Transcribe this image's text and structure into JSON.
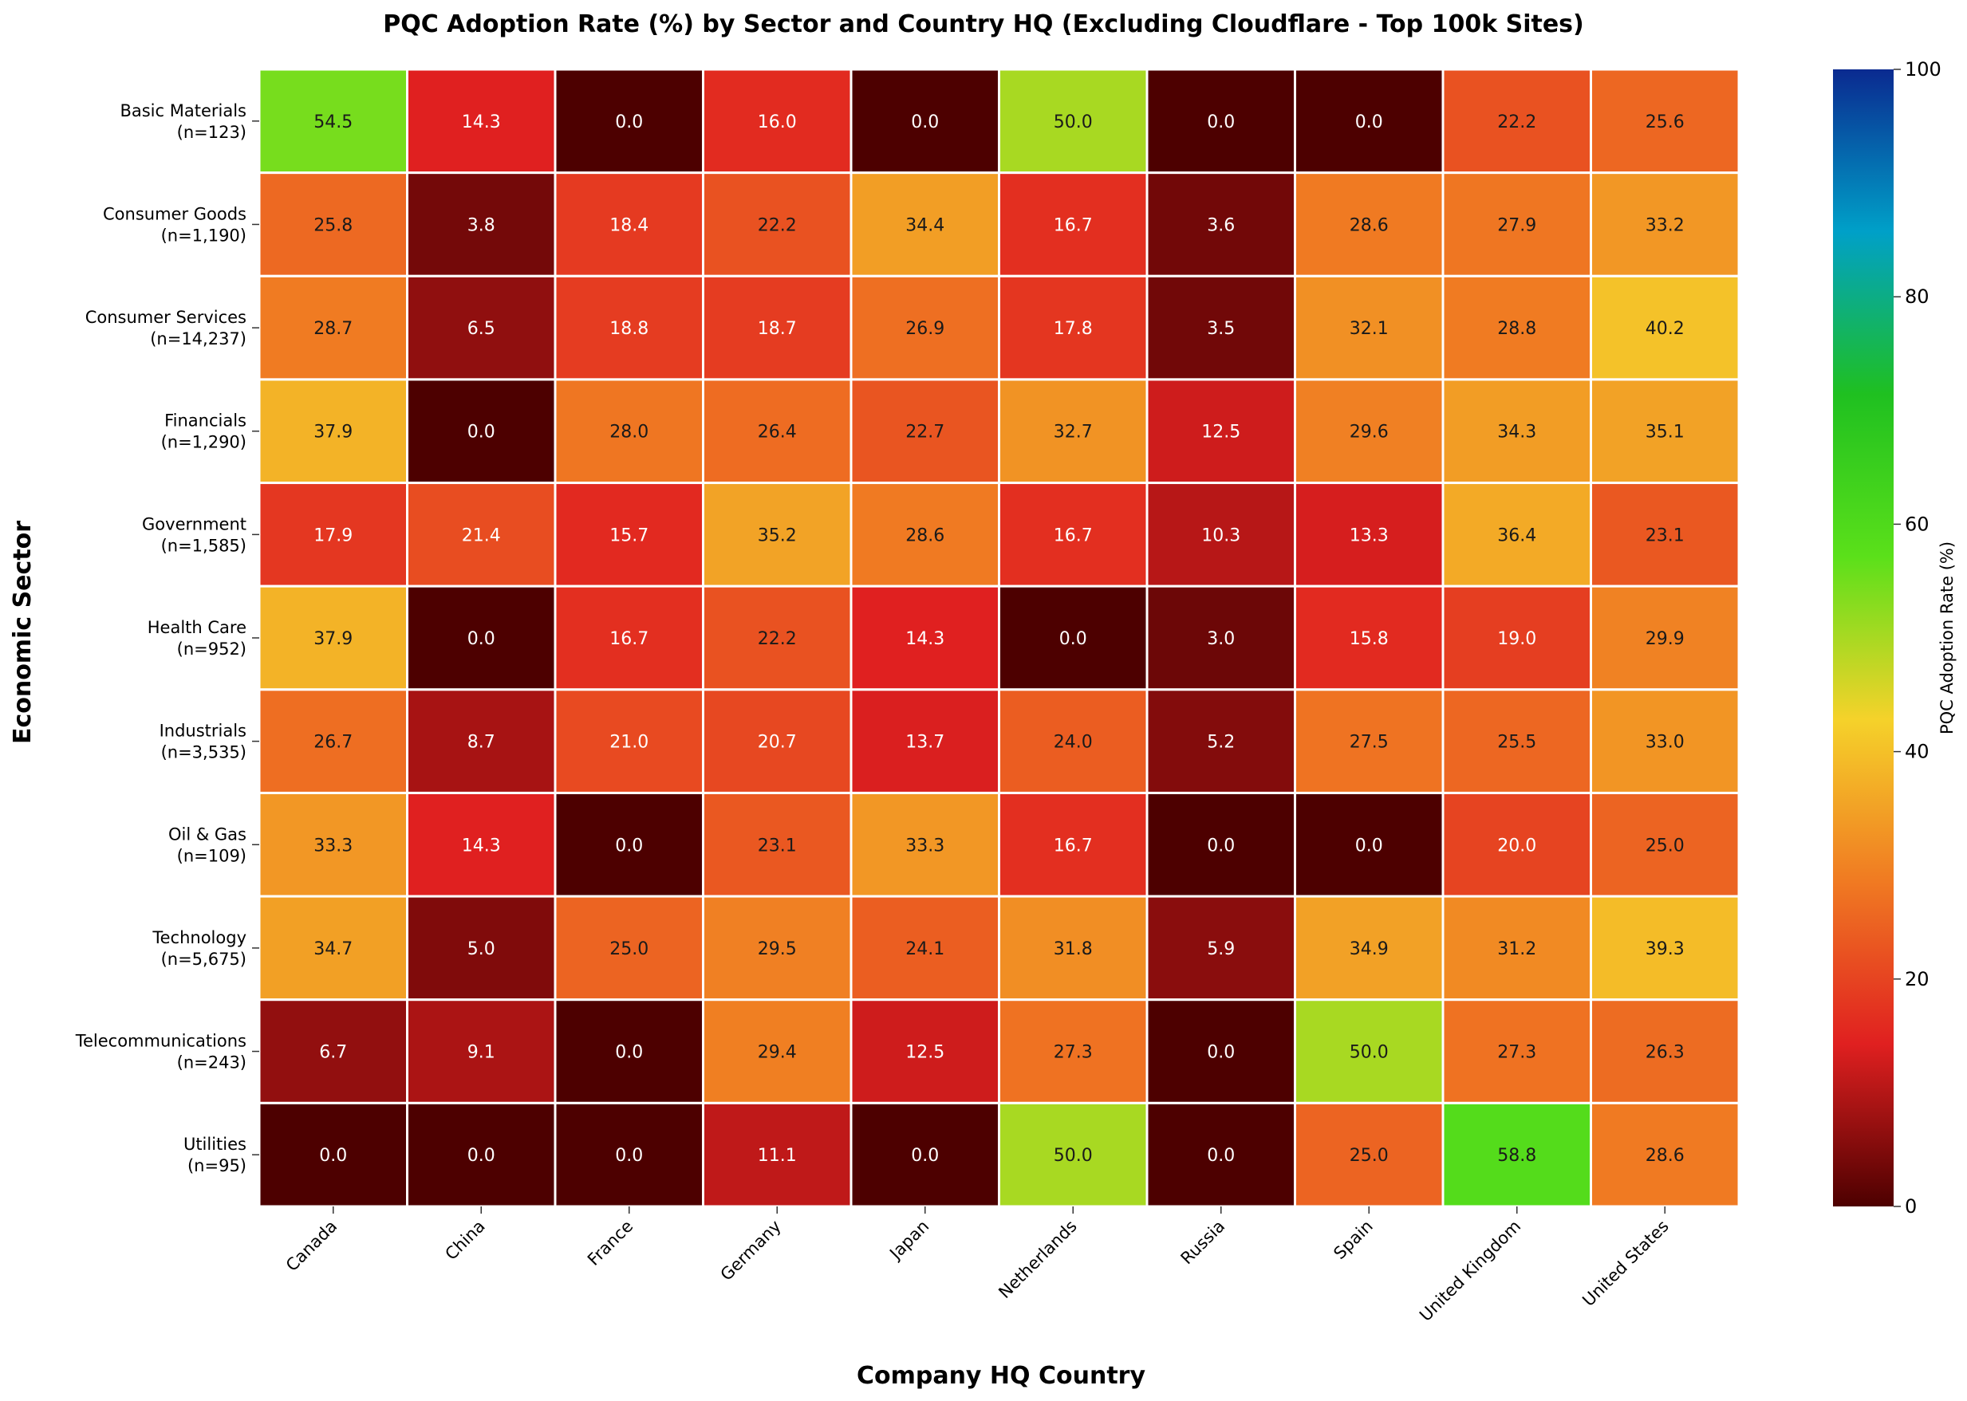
{
  "chart_data": {
    "type": "heatmap",
    "title": "PQC Adoption Rate (%) by Sector and Country HQ (Excluding Cloudflare - Top 100k Sites)",
    "xlabel": "Company HQ Country",
    "ylabel": "Economic Sector",
    "colorbar_label": "PQC Adoption Rate (%)",
    "colorbar_range": [
      0,
      100
    ],
    "colorbar_ticks": [
      "0",
      "20",
      "40",
      "60",
      "80",
      "100"
    ],
    "colorscale": [
      "#4d0000",
      "#e02020",
      "#f07a22",
      "#f5d22a",
      "#5be01a",
      "#1fc020",
      "#00a0c8",
      "#0a2a90"
    ],
    "columns": [
      "Canada",
      "China",
      "France",
      "Germany",
      "Japan",
      "Netherlands",
      "Russia",
      "Spain",
      "United Kingdom",
      "United States"
    ],
    "rows": [
      {
        "sector": "Basic Materials",
        "n": "(n=123)"
      },
      {
        "sector": "Consumer Goods",
        "n": "(n=1,190)"
      },
      {
        "sector": "Consumer Services",
        "n": "(n=14,237)"
      },
      {
        "sector": "Financials",
        "n": "(n=1,290)"
      },
      {
        "sector": "Government",
        "n": "(n=1,585)"
      },
      {
        "sector": "Health Care",
        "n": "(n=952)"
      },
      {
        "sector": "Industrials",
        "n": "(n=3,535)"
      },
      {
        "sector": "Oil & Gas",
        "n": "(n=109)"
      },
      {
        "sector": "Technology",
        "n": "(n=5,675)"
      },
      {
        "sector": "Telecommunications",
        "n": "(n=243)"
      },
      {
        "sector": "Utilities",
        "n": "(n=95)"
      }
    ],
    "values": [
      [
        54.5,
        14.3,
        0.0,
        16.0,
        0.0,
        50.0,
        0.0,
        0.0,
        22.2,
        25.6
      ],
      [
        25.8,
        3.8,
        18.4,
        22.2,
        34.4,
        16.7,
        3.6,
        28.6,
        27.9,
        33.2
      ],
      [
        28.7,
        6.5,
        18.8,
        18.7,
        26.9,
        17.8,
        3.5,
        32.1,
        28.8,
        40.2
      ],
      [
        37.9,
        0.0,
        28.0,
        26.4,
        22.7,
        32.7,
        12.5,
        29.6,
        34.3,
        35.1
      ],
      [
        17.9,
        21.4,
        15.7,
        35.2,
        28.6,
        16.7,
        10.3,
        13.3,
        36.4,
        23.1
      ],
      [
        37.9,
        0.0,
        16.7,
        22.2,
        14.3,
        0.0,
        3.0,
        15.8,
        19.0,
        29.9
      ],
      [
        26.7,
        8.7,
        21.0,
        20.7,
        13.7,
        24.0,
        5.2,
        27.5,
        25.5,
        33.0
      ],
      [
        33.3,
        14.3,
        0.0,
        23.1,
        33.3,
        16.7,
        0.0,
        0.0,
        20.0,
        25.0
      ],
      [
        34.7,
        5.0,
        25.0,
        29.5,
        24.1,
        31.8,
        5.9,
        34.9,
        31.2,
        39.3
      ],
      [
        6.7,
        9.1,
        0.0,
        29.4,
        12.5,
        27.3,
        0.0,
        50.0,
        27.3,
        26.3
      ],
      [
        0.0,
        0.0,
        0.0,
        11.1,
        0.0,
        50.0,
        0.0,
        25.0,
        58.8,
        28.6
      ]
    ]
  }
}
